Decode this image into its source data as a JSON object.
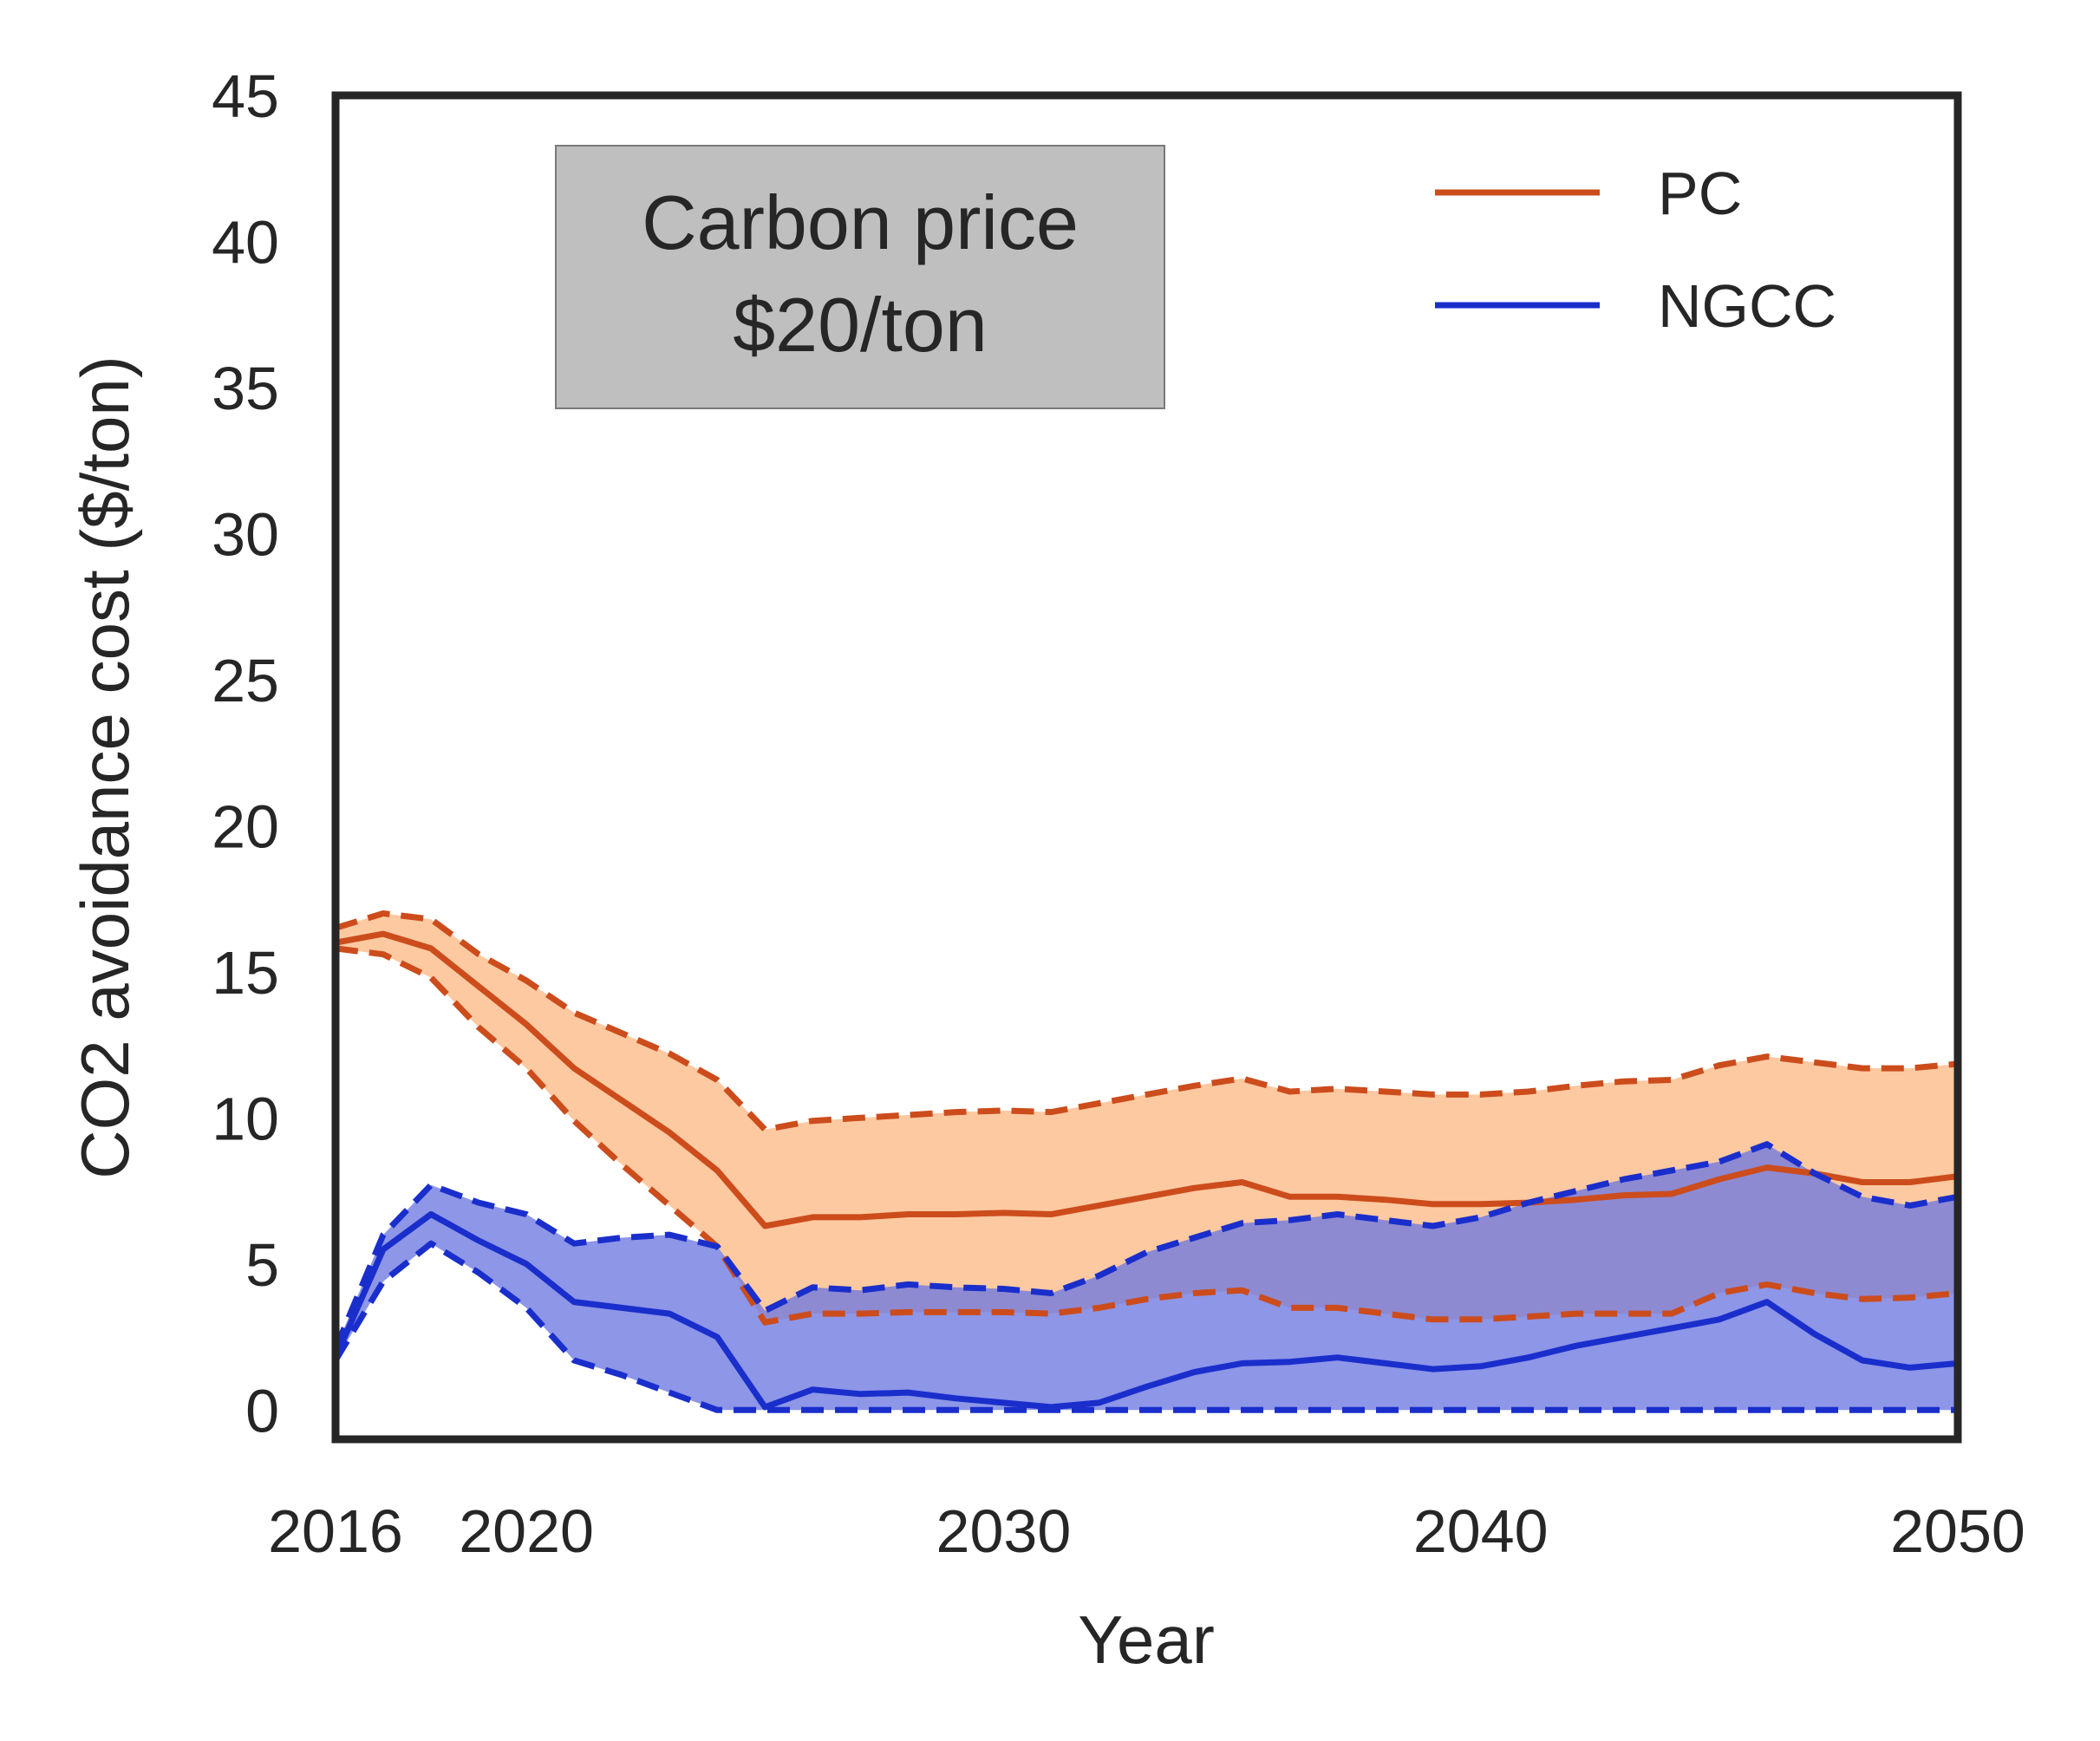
{
  "chart_data": {
    "type": "line",
    "xlabel": "Year",
    "ylabel": "CO2 avoidance cost ($/ton)",
    "xlim": [
      2016,
      2050
    ],
    "ylim": [
      -1,
      45
    ],
    "xticks": [
      2016,
      2020,
      2030,
      2040,
      2050
    ],
    "yticks": [
      0,
      5,
      10,
      15,
      20,
      25,
      30,
      35,
      40,
      45
    ],
    "grid": false,
    "legend_position": "top-right",
    "annotation": {
      "line1": "Carbon price",
      "line2": "$20/ton"
    },
    "x": [
      2016,
      2017,
      2018,
      2019,
      2020,
      2021,
      2022,
      2023,
      2024,
      2025,
      2026,
      2027,
      2028,
      2029,
      2030,
      2031,
      2032,
      2033,
      2034,
      2035,
      2036,
      2037,
      2038,
      2039,
      2040,
      2041,
      2042,
      2043,
      2044,
      2045,
      2046,
      2047,
      2048,
      2049,
      2050
    ],
    "series": [
      {
        "name": "PC",
        "color": "#cc4c1c",
        "fill": "#fdc9a1",
        "mean": [
          16.0,
          16.3,
          15.8,
          14.5,
          13.2,
          11.7,
          10.6,
          9.5,
          8.2,
          6.3,
          6.6,
          6.6,
          6.7,
          6.7,
          6.75,
          6.7,
          7.0,
          7.3,
          7.6,
          7.8,
          7.3,
          7.3,
          7.2,
          7.05,
          7.05,
          7.1,
          7.2,
          7.35,
          7.4,
          7.9,
          8.3,
          8.1,
          7.8,
          7.8,
          8.0
        ],
        "upper": [
          16.5,
          17.0,
          16.8,
          15.6,
          14.7,
          13.6,
          12.9,
          12.2,
          11.3,
          9.6,
          9.9,
          10.0,
          10.1,
          10.2,
          10.25,
          10.2,
          10.5,
          10.8,
          11.1,
          11.35,
          10.9,
          11.0,
          10.9,
          10.8,
          10.8,
          10.9,
          11.1,
          11.25,
          11.3,
          11.8,
          12.1,
          11.9,
          11.7,
          11.7,
          11.85
        ],
        "lower": [
          15.8,
          15.6,
          14.8,
          13.1,
          11.7,
          9.9,
          8.4,
          7.0,
          5.6,
          3.0,
          3.3,
          3.3,
          3.35,
          3.35,
          3.35,
          3.3,
          3.5,
          3.8,
          4.0,
          4.1,
          3.5,
          3.5,
          3.3,
          3.1,
          3.1,
          3.2,
          3.3,
          3.3,
          3.3,
          4.0,
          4.3,
          4.0,
          3.8,
          3.85,
          4.0
        ]
      },
      {
        "name": "NGCC",
        "color": "#1a2ecc",
        "fill": "#6d79e0",
        "mean": [
          1.8,
          5.5,
          6.7,
          5.8,
          5.0,
          3.7,
          3.5,
          3.3,
          2.5,
          0.1,
          0.7,
          0.55,
          0.6,
          0.4,
          0.25,
          0.1,
          0.25,
          0.8,
          1.3,
          1.6,
          1.65,
          1.8,
          1.6,
          1.4,
          1.5,
          1.8,
          2.2,
          2.5,
          2.8,
          3.1,
          3.7,
          2.6,
          1.7,
          1.45,
          1.6
        ],
        "upper": [
          2.1,
          6.0,
          7.7,
          7.1,
          6.7,
          5.7,
          5.9,
          6.0,
          5.6,
          3.4,
          4.2,
          4.1,
          4.3,
          4.2,
          4.15,
          4.0,
          4.6,
          5.4,
          5.9,
          6.4,
          6.5,
          6.7,
          6.5,
          6.3,
          6.6,
          7.1,
          7.5,
          7.9,
          8.2,
          8.5,
          9.1,
          8.1,
          7.3,
          7.0,
          7.3
        ],
        "lower": [
          1.7,
          4.4,
          5.7,
          4.7,
          3.5,
          1.7,
          1.2,
          0.6,
          0.0,
          0.0,
          0.0,
          0.0,
          0.0,
          0.0,
          0.0,
          0.0,
          0.0,
          0.0,
          0.0,
          0.0,
          0.0,
          0.0,
          0.0,
          0.0,
          0.0,
          0.0,
          0.0,
          0.0,
          0.0,
          0.0,
          0.0,
          0.0,
          0.0,
          0.0,
          0.0
        ]
      }
    ]
  }
}
